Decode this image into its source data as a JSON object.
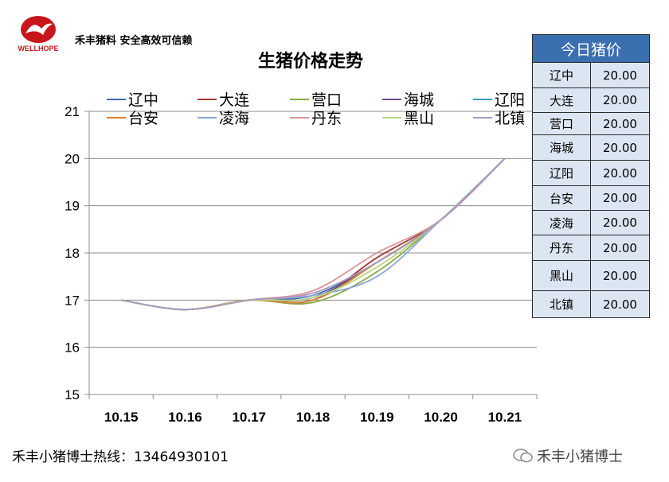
{
  "brand": {
    "logo_text": "WELLHOPE",
    "slogan": "禾丰猪料 安全高效可信赖",
    "logo_color": "#c8161d"
  },
  "footer": {
    "hotline": "禾丰小猪博士热线：13464930101",
    "wechat": "禾丰小猪博士"
  },
  "table": {
    "header": "今日猪价",
    "rows": [
      {
        "name": "辽中",
        "price": "20.00"
      },
      {
        "name": "大连",
        "price": "20.00"
      },
      {
        "name": "营口",
        "price": "20.00"
      },
      {
        "name": "海城",
        "price": "20.00"
      },
      {
        "name": "辽阳",
        "price": "20.00"
      },
      {
        "name": "台安",
        "price": "20.00"
      },
      {
        "name": "凌海",
        "price": "20.00"
      },
      {
        "name": "丹东",
        "price": "20.00"
      },
      {
        "name": "黑山",
        "price": "20.00"
      },
      {
        "name": "北镇",
        "price": "20.00"
      }
    ]
  },
  "chart_data": {
    "type": "line",
    "title": "生猪价格走势",
    "categories": [
      "10.15",
      "10.16",
      "10.17",
      "10.18",
      "10.19",
      "10.20",
      "10.21"
    ],
    "ylim": [
      15,
      21
    ],
    "yticks": [
      15,
      16,
      17,
      18,
      19,
      20,
      21
    ],
    "grid": true,
    "legend_position": "top",
    "series": [
      {
        "name": "辽中",
        "color": "#3f6ba8",
        "values": [
          17,
          16.8,
          17,
          17.1,
          17.8,
          18.7,
          20
        ]
      },
      {
        "name": "大连",
        "color": "#a33a38",
        "values": [
          17,
          16.8,
          17,
          17.0,
          17.9,
          18.7,
          20
        ]
      },
      {
        "name": "营口",
        "color": "#8aaa45",
        "values": [
          17,
          16.8,
          17,
          16.95,
          17.6,
          18.7,
          20
        ]
      },
      {
        "name": "海城",
        "color": "#6a4e8e",
        "values": [
          17,
          16.8,
          17,
          17.05,
          17.8,
          18.7,
          20
        ]
      },
      {
        "name": "辽阳",
        "color": "#3aa0b5",
        "values": [
          17,
          16.8,
          17,
          17.0,
          17.8,
          18.7,
          20
        ]
      },
      {
        "name": "台安",
        "color": "#e07f2f",
        "values": [
          17,
          16.8,
          17,
          17.0,
          17.8,
          18.7,
          20
        ]
      },
      {
        "name": "凌海",
        "color": "#8da6d8",
        "values": [
          17,
          16.8,
          17,
          17.1,
          17.5,
          18.7,
          20
        ]
      },
      {
        "name": "丹东",
        "color": "#d99494",
        "values": [
          17,
          16.8,
          17,
          17.2,
          18.0,
          18.7,
          20
        ]
      },
      {
        "name": "黑山",
        "color": "#b7d67f",
        "values": [
          17,
          16.8,
          17,
          17.05,
          17.7,
          18.7,
          20
        ]
      },
      {
        "name": "北镇",
        "color": "#a898c0",
        "values": [
          17,
          16.8,
          17,
          17.15,
          17.8,
          18.7,
          20
        ]
      }
    ]
  }
}
